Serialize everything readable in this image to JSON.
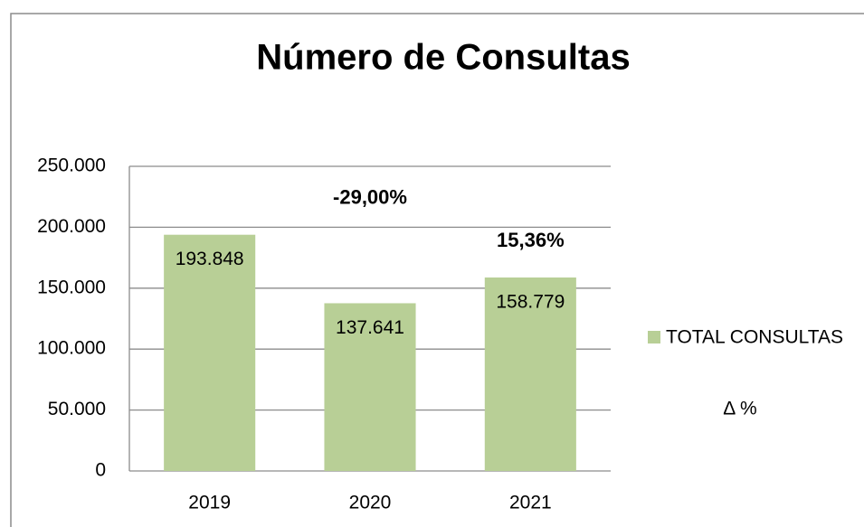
{
  "chart_data": {
    "type": "bar",
    "title": "Número de Consultas",
    "categories": [
      "2019",
      "2020",
      "2021"
    ],
    "series": [
      {
        "name": "TOTAL CONSULTAS",
        "color": "#b8cf96",
        "values": [
          193848,
          137641,
          158779
        ],
        "value_labels": [
          "193.848",
          "137.641",
          "158.779"
        ]
      },
      {
        "name": "Δ %",
        "values": [
          null,
          -29.0,
          15.36
        ],
        "value_labels": [
          null,
          "-29,00%",
          "15,36%"
        ]
      }
    ],
    "ylim": [
      0,
      250000
    ],
    "yticks": [
      0,
      {
        "value": 50000,
        "label": "50.000"
      },
      {
        "value": 100000,
        "label": "100.000"
      },
      {
        "value": 150000,
        "label": "150.000"
      },
      {
        "value": 200000,
        "label": "200.000"
      },
      {
        "value": 250000,
        "label": "250.000"
      }
    ],
    "grid": true,
    "legend": "right"
  }
}
